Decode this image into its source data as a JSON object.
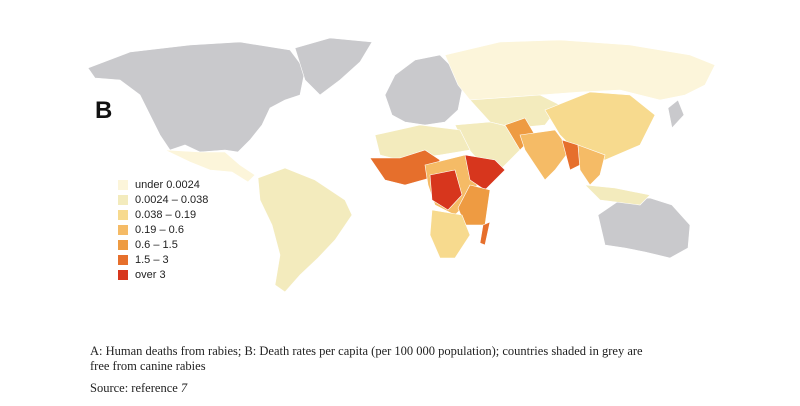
{
  "panel_label": "B",
  "legend": [
    {
      "label": "under 0.0024",
      "color": "#fcf5da"
    },
    {
      "label": "0.0024 – 0.038",
      "color": "#f3ebbd"
    },
    {
      "label": "0.038 – 0.19",
      "color": "#f7da8e"
    },
    {
      "label": "0.19 – 0.6",
      "color": "#f5bb66"
    },
    {
      "label": "0.6 – 1.5",
      "color": "#ee9b42"
    },
    {
      "label": "1.5 – 3",
      "color": "#e66f2c"
    },
    {
      "label": "over 3",
      "color": "#d7361d"
    }
  ],
  "caption": "A: Human deaths from rabies; B: Death rates per capita (per 100 000 population); countries shaded in grey are free from canine rabies",
  "source": {
    "text": "Source: reference",
    "ref": "7"
  }
}
